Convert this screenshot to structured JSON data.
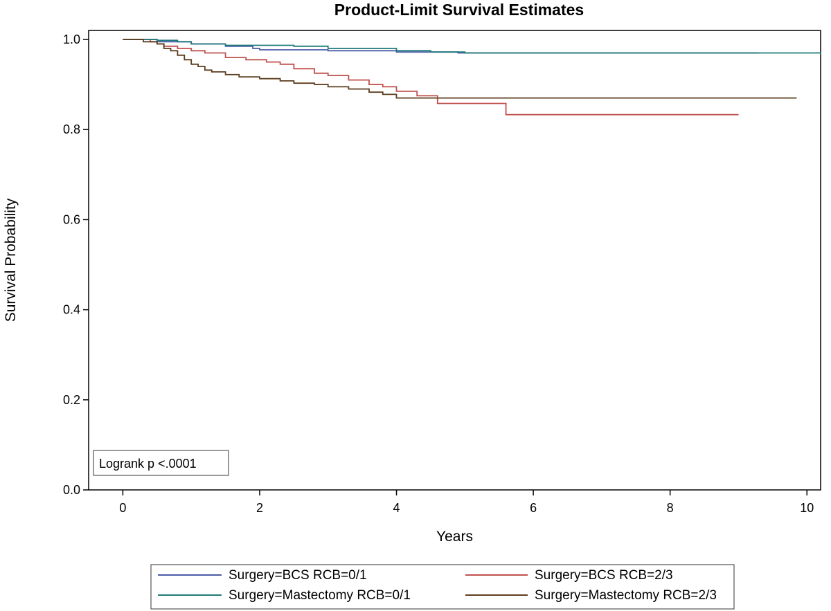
{
  "chart_data": {
    "type": "line",
    "subtype": "step",
    "title": "Product-Limit Survival Estimates",
    "xlabel": "Years",
    "ylabel": "Survival Probability",
    "xlim": [
      -0.5,
      10.2
    ],
    "ylim": [
      0,
      1.02
    ],
    "xticks": [
      0,
      2,
      4,
      6,
      8,
      10
    ],
    "yticks": [
      0.0,
      0.2,
      0.4,
      0.6,
      0.8,
      1.0
    ],
    "xtick_labels": [
      "0",
      "2",
      "4",
      "6",
      "8",
      "10"
    ],
    "ytick_labels": [
      "0.0",
      "0.2",
      "0.4",
      "0.6",
      "0.8",
      "1.0"
    ],
    "grid": false,
    "legend_position": "bottom",
    "annotation": "Logrank p <.0001",
    "series": [
      {
        "name": "Surgery=BCS RCB=0/1",
        "color": "#4a5aa8",
        "x": [
          0,
          0.5,
          1.0,
          1.5,
          1.9,
          2.0,
          3.0,
          4.0,
          4.9,
          9.3
        ],
        "y": [
          1.0,
          0.995,
          0.99,
          0.985,
          0.98,
          0.977,
          0.975,
          0.972,
          0.97,
          0.97
        ]
      },
      {
        "name": "Surgery=BCS RCB=2/3",
        "color": "#c0504d",
        "x": [
          0,
          0.4,
          0.5,
          0.6,
          0.8,
          1.0,
          1.2,
          1.5,
          1.8,
          2.1,
          2.3,
          2.5,
          2.8,
          3.0,
          3.3,
          3.6,
          3.8,
          4.0,
          4.3,
          4.6,
          5.6,
          9.0
        ],
        "y": [
          1.0,
          0.995,
          0.99,
          0.985,
          0.98,
          0.975,
          0.97,
          0.96,
          0.955,
          0.95,
          0.945,
          0.935,
          0.925,
          0.92,
          0.91,
          0.9,
          0.895,
          0.885,
          0.875,
          0.858,
          0.833,
          0.833
        ]
      },
      {
        "name": "Surgery=Mastectomy RCB=0/1",
        "color": "#1f7a7a",
        "x": [
          0,
          0.5,
          0.8,
          1.0,
          1.5,
          2.5,
          3.0,
          4.0,
          4.5,
          5.0,
          10.2
        ],
        "y": [
          1.0,
          0.998,
          0.995,
          0.99,
          0.987,
          0.985,
          0.98,
          0.975,
          0.972,
          0.97,
          0.967
        ]
      },
      {
        "name": "Surgery=Mastectomy RCB=2/3",
        "color": "#5c3d1e",
        "x": [
          0,
          0.3,
          0.5,
          0.6,
          0.7,
          0.8,
          0.9,
          1.0,
          1.1,
          1.2,
          1.3,
          1.5,
          1.7,
          2.0,
          2.3,
          2.5,
          2.8,
          3.0,
          3.3,
          3.6,
          3.8,
          4.0,
          9.85
        ],
        "y": [
          1.0,
          0.995,
          0.99,
          0.98,
          0.975,
          0.965,
          0.955,
          0.945,
          0.94,
          0.932,
          0.928,
          0.922,
          0.917,
          0.913,
          0.908,
          0.903,
          0.9,
          0.895,
          0.89,
          0.883,
          0.878,
          0.87,
          0.87
        ]
      }
    ]
  }
}
